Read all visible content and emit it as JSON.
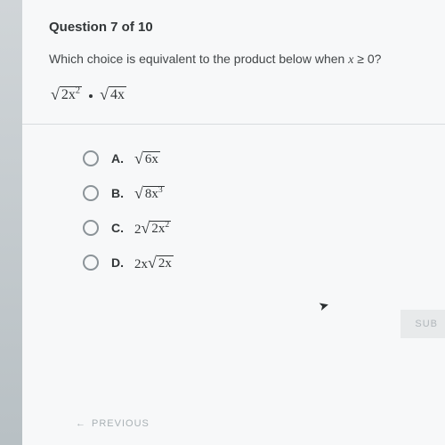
{
  "header": "Question 7 of 10",
  "prompt_pre": "Which choice is equivalent to the product below when ",
  "prompt_cond_var": "x",
  "prompt_cond_rel": " ≥ 0?",
  "expression": {
    "part1_under": "2x",
    "part1_sup": "2",
    "part2_under": "4x"
  },
  "choices": [
    {
      "label": "A.",
      "prefix": "",
      "under": "6x",
      "sup": ""
    },
    {
      "label": "B.",
      "prefix": "",
      "under": "8x",
      "sup": "3"
    },
    {
      "label": "C.",
      "prefix": "2",
      "under": "2x",
      "sup": "2"
    },
    {
      "label": "D.",
      "prefix": "2x",
      "under": "2x",
      "sup": ""
    }
  ],
  "buttons": {
    "submit": "SUB",
    "previous": "PREVIOUS"
  },
  "colors": {
    "page_bg": "#f7f8f9",
    "text_primary": "#323638",
    "text_secondary": "#424648",
    "radio_border": "#8b9398",
    "divider": "#d8dcde",
    "muted": "#a8b0b4"
  }
}
